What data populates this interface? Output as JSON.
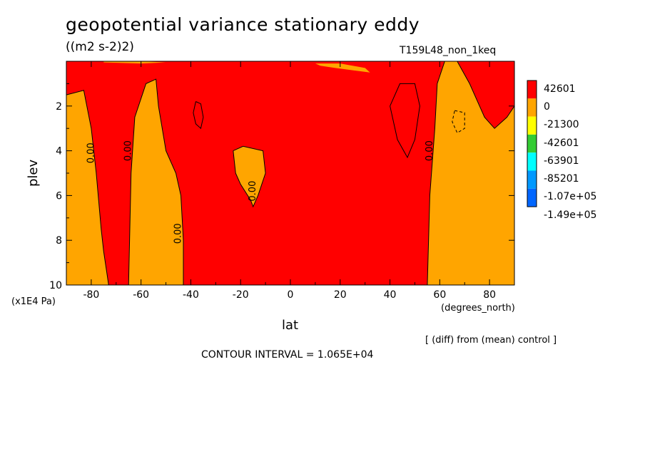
{
  "title": "geopotential variance stationary eddy",
  "units": "((m2 s-2)2)",
  "dataset": "T159L48_non_1keq",
  "x_unit": "(degrees_north)",
  "y_unit": "(x1E4 Pa)",
  "x_label": "lat",
  "y_label": "plev",
  "diff_note": "[ (diff) from (mean) control ]",
  "contour_interval": "CONTOUR INTERVAL = 1.065E+04",
  "chart_data": {
    "type": "heatmap",
    "title": "geopotential variance stationary eddy",
    "xlabel": "lat",
    "ylabel": "plev",
    "xlim": [
      -90,
      90
    ],
    "ylim": [
      10,
      0
    ],
    "x_ticks": [
      -80,
      -60,
      -40,
      -20,
      0,
      20,
      40,
      60,
      80
    ],
    "x_tick_labels": [
      "-80",
      "-60",
      "-40",
      "-20",
      "0",
      "20",
      "40",
      "60",
      "80"
    ],
    "y_ticks": [
      2,
      4,
      6,
      8,
      10
    ],
    "y_tick_labels": [
      "2",
      "4",
      "6",
      "8",
      "10"
    ],
    "colorbar": [
      {
        "label": "42601",
        "color": "#ff0000"
      },
      {
        "label": "0",
        "color": "#ffa500"
      },
      {
        "label": "-21300",
        "color": "#ffff00"
      },
      {
        "label": "-42601",
        "color": "#33cc33"
      },
      {
        "label": "-63901",
        "color": "#00ffff"
      },
      {
        "label": "-85201",
        "color": "#0099ff"
      },
      {
        "label": "-1.07e+05",
        "color": "#0066ff"
      },
      {
        "label": "-1.49e+05",
        "color": ""
      }
    ],
    "background_color": "#ff0000",
    "regions": [
      {
        "color": "#ffa500",
        "points": [
          [
            -90,
            10
          ],
          [
            -90,
            1.5
          ],
          [
            -83,
            1.3
          ],
          [
            -80,
            3
          ],
          [
            -78,
            5
          ],
          [
            -76,
            7.5
          ],
          [
            -75,
            8.5
          ],
          [
            -73,
            10
          ]
        ]
      },
      {
        "color": "#ffa500",
        "points": [
          [
            -65,
            10
          ],
          [
            -64,
            5
          ],
          [
            -62.5,
            2.5
          ],
          [
            -58,
            1
          ],
          [
            -54,
            0.8
          ],
          [
            -53,
            2
          ],
          [
            -50,
            4
          ],
          [
            -46,
            5
          ],
          [
            -44,
            6
          ],
          [
            -43,
            8
          ],
          [
            -43,
            10
          ]
        ]
      },
      {
        "color": "#ffa500",
        "points": [
          [
            -23,
            4
          ],
          [
            -19,
            3.8
          ],
          [
            -11,
            4
          ],
          [
            -10,
            5
          ],
          [
            -13,
            6
          ],
          [
            -15,
            6.5
          ],
          [
            -16,
            6.2
          ],
          [
            -20,
            5.5
          ],
          [
            -22,
            5
          ]
        ]
      },
      {
        "color": "#ffa500",
        "points": [
          [
            55,
            10
          ],
          [
            56,
            6
          ],
          [
            58,
            3
          ],
          [
            59,
            1
          ],
          [
            62,
            0
          ],
          [
            67,
            0
          ],
          [
            72,
            1
          ],
          [
            78,
            2.5
          ],
          [
            82,
            3
          ],
          [
            87,
            2.5
          ],
          [
            90,
            2
          ],
          [
            90,
            10
          ]
        ]
      },
      {
        "color": "#ffa500",
        "points": [
          [
            -75,
            0.05
          ],
          [
            -60,
            0.1
          ],
          [
            -50,
            0.05
          ],
          [
            -60,
            0
          ],
          [
            -75,
            0
          ]
        ]
      },
      {
        "color": "#ffa500",
        "points": [
          [
            10,
            0.1
          ],
          [
            20,
            0.1
          ],
          [
            30,
            0.3
          ],
          [
            32,
            0.5
          ],
          [
            25,
            0.4
          ],
          [
            18,
            0.3
          ],
          [
            12,
            0.2
          ]
        ]
      }
    ],
    "contour_lines": [
      {
        "style": "solid",
        "points": [
          [
            -90,
            1.5
          ],
          [
            -83,
            1.3
          ],
          [
            -80,
            3
          ],
          [
            -78,
            5
          ],
          [
            -76,
            7.5
          ],
          [
            -75,
            8.5
          ],
          [
            -73,
            10
          ]
        ]
      },
      {
        "style": "solid",
        "points": [
          [
            -65,
            10
          ],
          [
            -64,
            5
          ],
          [
            -62.5,
            2.5
          ],
          [
            -58,
            1
          ],
          [
            -54,
            0.8
          ],
          [
            -53,
            2
          ],
          [
            -50,
            4
          ],
          [
            -46,
            5
          ],
          [
            -44,
            6
          ],
          [
            -43,
            8
          ],
          [
            -43,
            10
          ]
        ]
      },
      {
        "style": "solid",
        "points": [
          [
            -23,
            4
          ],
          [
            -19,
            3.8
          ],
          [
            -11,
            4
          ],
          [
            -10,
            5
          ],
          [
            -13,
            6
          ],
          [
            -15,
            6.5
          ],
          [
            -16,
            6.2
          ],
          [
            -20,
            5.5
          ],
          [
            -22,
            5
          ],
          [
            -23,
            4
          ]
        ]
      },
      {
        "style": "solid",
        "points": [
          [
            55,
            10
          ],
          [
            56,
            6
          ],
          [
            58,
            3
          ],
          [
            59,
            1
          ],
          [
            62,
            0
          ],
          [
            67,
            0
          ],
          [
            72,
            1
          ],
          [
            78,
            2.5
          ],
          [
            82,
            3
          ],
          [
            87,
            2.5
          ],
          [
            90,
            2
          ]
        ]
      },
      {
        "style": "solid",
        "points": [
          [
            -38,
            1.8
          ],
          [
            -36,
            1.9
          ],
          [
            -35,
            2.5
          ],
          [
            -36,
            3
          ],
          [
            -38,
            2.8
          ],
          [
            -39,
            2.3
          ],
          [
            -38,
            1.8
          ]
        ]
      },
      {
        "style": "solid",
        "points": [
          [
            40,
            2
          ],
          [
            44,
            1
          ],
          [
            50,
            1
          ],
          [
            52,
            2
          ],
          [
            50,
            3.5
          ],
          [
            47,
            4.3
          ],
          [
            43,
            3.5
          ],
          [
            40,
            2
          ]
        ]
      },
      {
        "style": "dashed",
        "points": [
          [
            66,
            2.2
          ],
          [
            70,
            2.3
          ],
          [
            70,
            3
          ],
          [
            67,
            3.2
          ],
          [
            65,
            2.7
          ],
          [
            66,
            2.2
          ]
        ]
      }
    ],
    "contour_labels": [
      {
        "text": "0.00",
        "x": -79,
        "y": 4.1
      },
      {
        "text": "0.00",
        "x": -64,
        "y": 4.0
      },
      {
        "text": "0.00",
        "x": -44,
        "y": 7.7
      },
      {
        "text": "0.00",
        "x": -14,
        "y": 5.8
      },
      {
        "text": "0.00",
        "x": 57,
        "y": 4.0
      }
    ]
  }
}
